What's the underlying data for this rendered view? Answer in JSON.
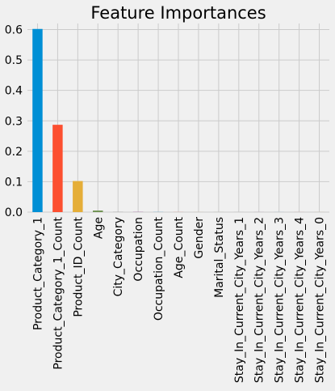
{
  "chart_data": {
    "type": "bar",
    "title": "Feature Importances",
    "xlabel": "",
    "ylabel": "",
    "categories": [
      "Product_Category_1",
      "Product_Category_1_Count",
      "Product_ID_Count",
      "Age",
      "City_Category",
      "Occupation",
      "Occupation_Count",
      "Age_Count",
      "Gender",
      "Marital_Status",
      "Stay_In_Current_City_Years_1",
      "Stay_In_Current_City_Years_2",
      "Stay_In_Current_City_Years_3",
      "Stay_In_Current_City_Years_4",
      "Stay_In_Current_City_Years_0"
    ],
    "values": [
      0.602,
      0.287,
      0.102,
      0.005,
      0.0005,
      0.0004,
      0.0003,
      0.0002,
      0.0001,
      0.0001,
      0.0001,
      0.0001,
      0.0001,
      0.0001,
      0.0001
    ],
    "ylim": [
      0,
      0.62
    ],
    "yticks": [
      0.0,
      0.1,
      0.2,
      0.3,
      0.4,
      0.5,
      0.6
    ],
    "ytick_labels": [
      "0.0",
      "0.1",
      "0.2",
      "0.3",
      "0.4",
      "0.5",
      "0.6"
    ],
    "grid": true,
    "legend": "none",
    "colors": [
      "#008fd5",
      "#fc4f30",
      "#e5ae38",
      "#6d904f",
      "#8b8b8b",
      "#810f7c"
    ],
    "background": "#f0f0f0",
    "grid_color": "#cbcbcb"
  }
}
